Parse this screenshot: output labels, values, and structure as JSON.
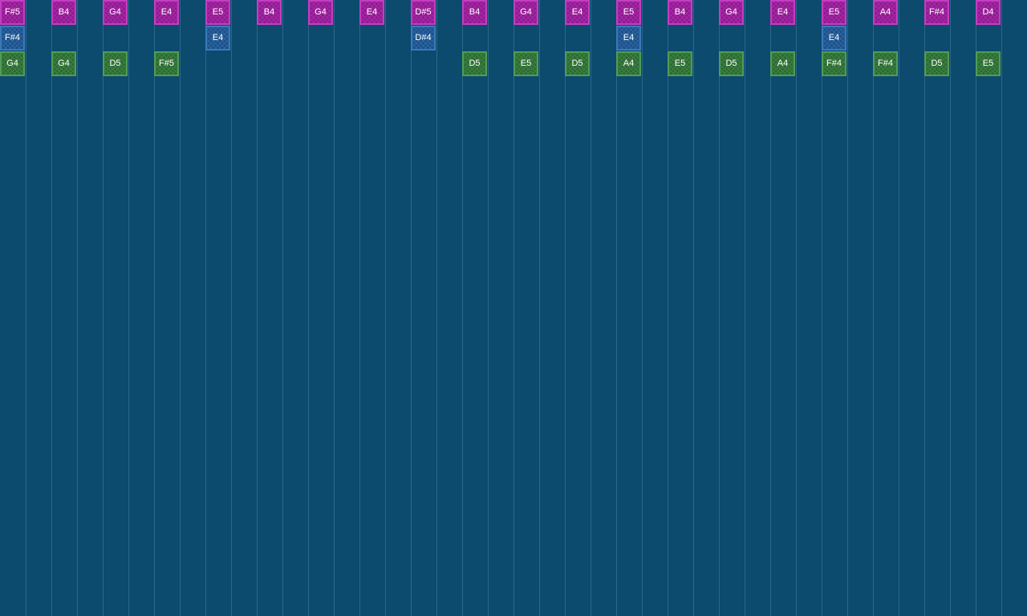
{
  "colors": {
    "background": "#0c4a6e",
    "grid_line": "#2d6786",
    "note_text": "#ffffff",
    "rows": [
      {
        "fill": "#8e1a8e",
        "border": "#c23ec2",
        "pattern": "#a82aa8"
      },
      {
        "fill": "#1d4f86",
        "border": "#3a79ba",
        "pattern": "#2c67a4"
      },
      {
        "fill": "#2c6a32",
        "border": "#4f9c57",
        "pattern": "#3d8043"
      }
    ]
  },
  "grid": {
    "columns": 40
  },
  "tracks": [
    {
      "name": "track-1",
      "notes": [
        {
          "step": 0,
          "label": "F#5"
        },
        {
          "step": 2,
          "label": "B4"
        },
        {
          "step": 4,
          "label": "G4"
        },
        {
          "step": 6,
          "label": "E4"
        },
        {
          "step": 8,
          "label": "E5"
        },
        {
          "step": 10,
          "label": "B4"
        },
        {
          "step": 12,
          "label": "G4"
        },
        {
          "step": 14,
          "label": "E4"
        },
        {
          "step": 16,
          "label": "D#5"
        },
        {
          "step": 18,
          "label": "B4"
        },
        {
          "step": 20,
          "label": "G4"
        },
        {
          "step": 22,
          "label": "E4"
        },
        {
          "step": 24,
          "label": "E5"
        },
        {
          "step": 26,
          "label": "B4"
        },
        {
          "step": 28,
          "label": "G4"
        },
        {
          "step": 30,
          "label": "E4"
        },
        {
          "step": 32,
          "label": "E5"
        },
        {
          "step": 34,
          "label": "A4"
        },
        {
          "step": 36,
          "label": "F#4"
        },
        {
          "step": 38,
          "label": "D4"
        }
      ]
    },
    {
      "name": "track-2",
      "notes": [
        {
          "step": 0,
          "label": "F#4"
        },
        {
          "step": 8,
          "label": "E4"
        },
        {
          "step": 16,
          "label": "D#4"
        },
        {
          "step": 24,
          "label": "E4"
        },
        {
          "step": 32,
          "label": "E4"
        }
      ]
    },
    {
      "name": "track-3",
      "notes": [
        {
          "step": 0,
          "label": "G4"
        },
        {
          "step": 2,
          "label": "G4"
        },
        {
          "step": 4,
          "label": "D5"
        },
        {
          "step": 6,
          "label": "F#5"
        },
        {
          "step": 18,
          "label": "D5"
        },
        {
          "step": 20,
          "label": "E5"
        },
        {
          "step": 22,
          "label": "D5"
        },
        {
          "step": 24,
          "label": "A4"
        },
        {
          "step": 26,
          "label": "E5"
        },
        {
          "step": 28,
          "label": "D5"
        },
        {
          "step": 30,
          "label": "A4"
        },
        {
          "step": 32,
          "label": "F#4"
        },
        {
          "step": 34,
          "label": "F#4"
        },
        {
          "step": 36,
          "label": "D5"
        },
        {
          "step": 38,
          "label": "E5"
        }
      ]
    }
  ]
}
